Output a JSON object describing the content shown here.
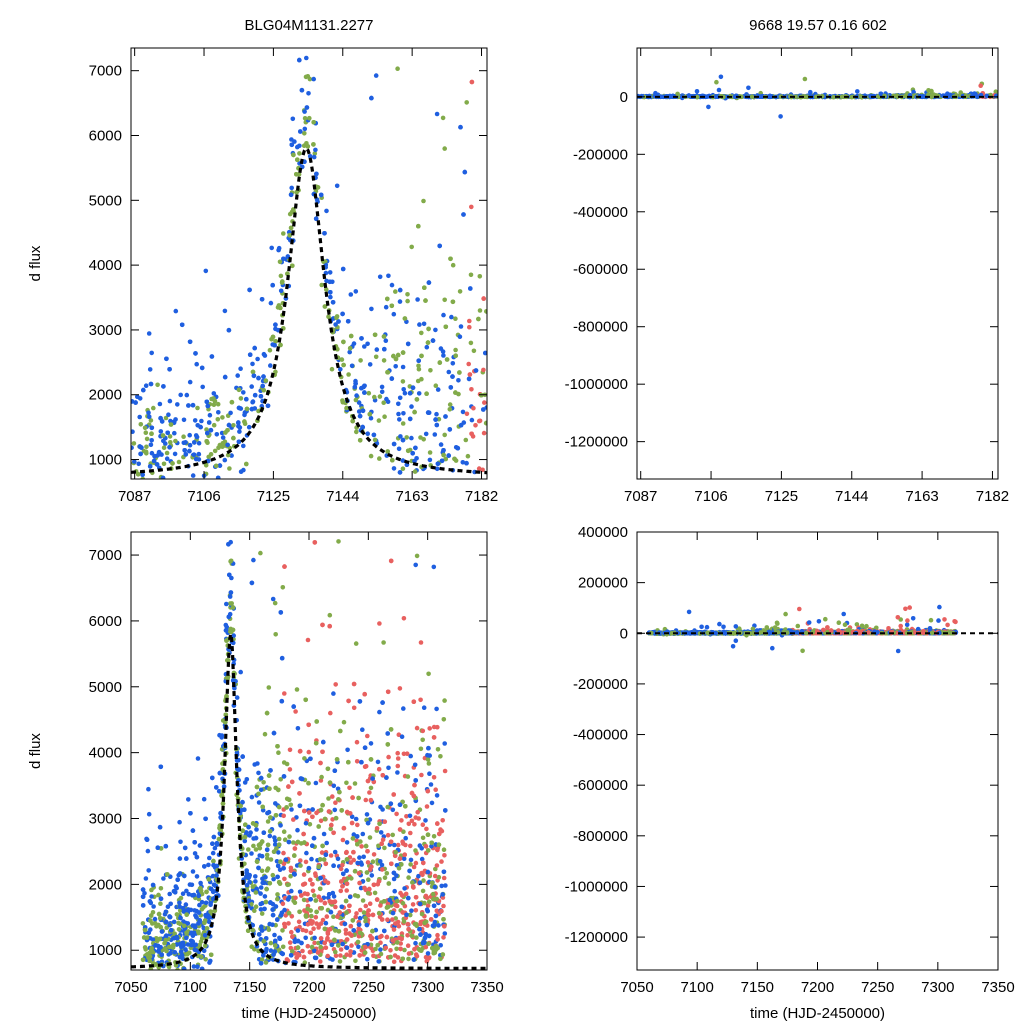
{
  "figure": {
    "title_left": "BLG04M1131.2277",
    "title_right": "9668  19.57  0.16  602"
  },
  "colors": {
    "blue": "#1f5fe0",
    "green": "#82ab4a",
    "red": "#e8605f",
    "fit": "#000000"
  },
  "chart_data": [
    {
      "id": "top-left",
      "type": "scatter",
      "xlabel": "",
      "ylabel": "d flux",
      "xlim": [
        7086,
        7183.5
      ],
      "ylim": [
        700,
        7350
      ],
      "xticks": [
        7087,
        7106,
        7125,
        7144,
        7163,
        7182
      ],
      "yticks": [
        1000,
        2000,
        3000,
        4000,
        5000,
        6000,
        7000
      ],
      "model": {
        "t0": 7134,
        "peak": 5800,
        "base": 720,
        "width": 6.5
      },
      "series_note": "blue, green, red photometry points; black dashed model fit"
    },
    {
      "id": "top-right",
      "type": "scatter",
      "xlabel": "",
      "ylabel": "",
      "xlim": [
        7086,
        7183.5
      ],
      "ylim": [
        -1330000,
        170000
      ],
      "xticks": [
        7087,
        7106,
        7125,
        7144,
        7163,
        7182
      ],
      "yticks": [
        0,
        -200000,
        -400000,
        -600000,
        -800000,
        -1000000,
        -1200000
      ],
      "series_note": "residuals clustered near 0"
    },
    {
      "id": "bottom-left",
      "type": "scatter",
      "xlabel": "time (HJD-2450000)",
      "ylabel": "d flux",
      "xlim": [
        7050,
        7350
      ],
      "ylim": [
        700,
        7350
      ],
      "xticks": [
        7050,
        7100,
        7150,
        7200,
        7250,
        7300,
        7350
      ],
      "yticks": [
        1000,
        2000,
        3000,
        4000,
        5000,
        6000,
        7000
      ],
      "model": {
        "t0": 7134,
        "peak": 5800,
        "base": 720,
        "width": 6.5
      }
    },
    {
      "id": "bottom-right",
      "type": "scatter",
      "xlabel": "time (HJD-2450000)",
      "ylabel": "",
      "xlim": [
        7050,
        7350
      ],
      "ylim": [
        -1330000,
        400000
      ],
      "xticks": [
        7050,
        7100,
        7150,
        7200,
        7250,
        7300,
        7350
      ],
      "yticks": [
        400000,
        200000,
        0,
        -200000,
        -400000,
        -600000,
        -800000,
        -1000000,
        -1200000
      ]
    }
  ]
}
